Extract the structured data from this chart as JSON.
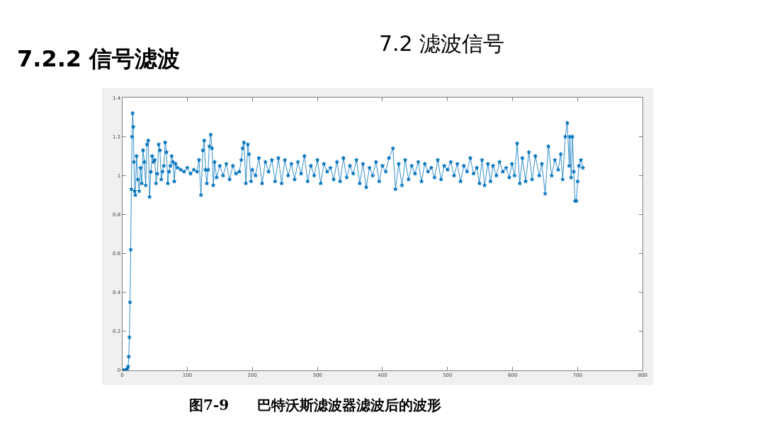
{
  "chart_data": {
    "type": "line",
    "title": "7.2.2 信号滤波",
    "subtitle": "7.2 滤波信号",
    "annotations": [
      "图7-9　　巴特沃斯滤波器滤波后的波形"
    ],
    "x": [
      0,
      2,
      4,
      6,
      8,
      9,
      10,
      11,
      12,
      13,
      14,
      15,
      16,
      17,
      18,
      19,
      20,
      22,
      24,
      26,
      28,
      30,
      32,
      34,
      36,
      38,
      40,
      42,
      44,
      46,
      48,
      50,
      52,
      54,
      56,
      58,
      60,
      62,
      64,
      66,
      68,
      70,
      72,
      74,
      76,
      78,
      80,
      82,
      85,
      90,
      95,
      100,
      105,
      110,
      115,
      118,
      121,
      124,
      126,
      128,
      130,
      132,
      134,
      136,
      138,
      140,
      142,
      145,
      150,
      155,
      160,
      165,
      170,
      175,
      180,
      183,
      185,
      187,
      190,
      193,
      195,
      198,
      200,
      205,
      210,
      215,
      220,
      225,
      230,
      235,
      240,
      245,
      250,
      255,
      260,
      265,
      270,
      275,
      280,
      285,
      290,
      295,
      300,
      305,
      310,
      315,
      320,
      325,
      330,
      335,
      340,
      345,
      350,
      355,
      360,
      365,
      370,
      375,
      380,
      385,
      390,
      395,
      400,
      405,
      410,
      416,
      420,
      425,
      430,
      435,
      440,
      445,
      450,
      455,
      460,
      465,
      470,
      475,
      480,
      485,
      490,
      495,
      500,
      505,
      510,
      515,
      520,
      525,
      530,
      535,
      540,
      545,
      549,
      553,
      557,
      562,
      566,
      570,
      575,
      580,
      585,
      590,
      595,
      599,
      603,
      607,
      611,
      615,
      620,
      625,
      630,
      635,
      641,
      645,
      650,
      655,
      660,
      665,
      670,
      674,
      677,
      681,
      684,
      687,
      688,
      690,
      692,
      694,
      696,
      698,
      700,
      702,
      705,
      708
    ],
    "series": [
      {
        "color": "#0072bd",
        "values": [
          0,
          0,
          0,
          0,
          0.01,
          0.02,
          0.07,
          0.17,
          0.35,
          0.62,
          0.93,
          1.2,
          1.32,
          1.25,
          1.07,
          0.92,
          0.9,
          1.1,
          0.98,
          0.92,
          1.04,
          0.96,
          1.13,
          1.07,
          0.95,
          1.16,
          1.18,
          0.89,
          1.02,
          1.1,
          1.07,
          1.08,
          0.96,
          1.01,
          1.16,
          1.13,
          0.98,
          1.02,
          1.05,
          1.17,
          1.12,
          0.96,
          1.02,
          1.05,
          1.1,
          1.07,
          0.97,
          1.06,
          1.04,
          1.03,
          1.02,
          1.04,
          1.01,
          1.03,
          1.02,
          1.08,
          0.9,
          1.13,
          1.18,
          1.03,
          0.96,
          1.03,
          1.15,
          1.21,
          1.14,
          0.95,
          1.07,
          0.99,
          1.05,
          1.0,
          1.06,
          0.98,
          1.05,
          1.01,
          1.02,
          1.08,
          1.14,
          1.17,
          0.96,
          1.16,
          1.11,
          0.97,
          1.03,
          1.0,
          1.09,
          0.96,
          1.07,
          1.02,
          1.08,
          0.97,
          1.09,
          0.96,
          1.08,
          1.0,
          1.06,
          0.98,
          1.07,
          1.01,
          1.1,
          0.97,
          1.05,
          1.0,
          1.08,
          0.96,
          1.06,
          1.02,
          1.04,
          0.98,
          1.07,
          0.97,
          1.09,
          0.99,
          1.05,
          1.01,
          1.08,
          0.96,
          1.06,
          0.94,
          1.04,
          1.0,
          1.07,
          0.97,
          1.05,
          1.02,
          1.09,
          1.14,
          0.93,
          1.06,
          0.95,
          1.08,
          0.98,
          1.05,
          1.01,
          1.07,
          0.97,
          1.06,
          1.02,
          1.04,
          0.99,
          1.08,
          0.98,
          1.05,
          1.03,
          1.07,
          1.0,
          1.06,
          0.97,
          1.05,
          1.02,
          1.09,
          1.01,
          1.04,
          0.96,
          1.08,
          0.95,
          1.06,
          0.97,
          1.05,
          1.0,
          1.07,
          1.02,
          1.04,
          0.99,
          1.06,
          1.0,
          1.165,
          0.96,
          1.09,
          0.97,
          1.12,
          0.98,
          1.1,
          1.0,
          1.06,
          0.907,
          1.15,
          1.0,
          1.08,
          1.03,
          1.11,
          0.98,
          1.2,
          1.27,
          1.05,
          1.2,
          0.99,
          1.2,
          1.02,
          0.87,
          0.87,
          0.97,
          1.05,
          1.08,
          1.04
        ]
      }
    ],
    "xlim": [
      0,
      800
    ],
    "xticks": [
      0,
      100,
      200,
      300,
      400,
      500,
      600,
      700,
      800
    ],
    "ylim": [
      0,
      1.4
    ],
    "yticks": [
      0,
      0.2,
      0.4,
      0.6,
      0.8,
      1,
      1.2,
      1.4
    ],
    "marker": "star",
    "line_style": "solid"
  }
}
